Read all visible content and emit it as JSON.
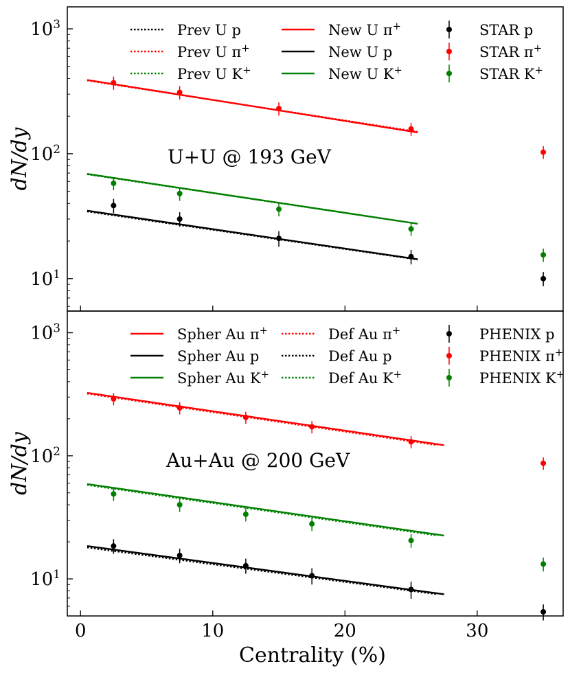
{
  "figure": {
    "xlabel": "Centrality (%)",
    "x_ticks": [
      0,
      10,
      20,
      30
    ]
  },
  "chart_data": [
    {
      "type": "line",
      "panel": "top",
      "annotation": "U+U @ 193 GeV",
      "ylabel": "dN/dy",
      "yscale": "log",
      "xlim": [
        -1,
        36.5
      ],
      "ylim": [
        5.5,
        1500
      ],
      "y_ticks": [
        10,
        100,
        1000
      ],
      "legend_placement": "top",
      "curves": [
        {
          "name": "Prev U p",
          "color": "#000000",
          "style": "dotted",
          "x": [
            0.5,
            25.5
          ],
          "y": [
            34.5,
            14.2
          ],
          "legend_col": 0,
          "legend_row": 0
        },
        {
          "name": "Prev U π⁺",
          "color": "#ff0000",
          "style": "dotted",
          "x": [
            0.5,
            25.5
          ],
          "y": [
            386,
            150
          ],
          "legend_col": 0,
          "legend_row": 1
        },
        {
          "name": "Prev U K⁺",
          "color": "#008000",
          "style": "dotted",
          "x": [
            0.5,
            25.5
          ],
          "y": [
            68.5,
            27.5
          ],
          "legend_col": 0,
          "legend_row": 2
        },
        {
          "name": "New U π⁺",
          "color": "#ff0000",
          "style": "solid",
          "x": [
            0.5,
            25.5
          ],
          "y": [
            390,
            148
          ],
          "legend_col": 1,
          "legend_row": 0
        },
        {
          "name": "New U p",
          "color": "#000000",
          "style": "solid",
          "x": [
            0.5,
            25.5
          ],
          "y": [
            35,
            14.3
          ],
          "legend_col": 1,
          "legend_row": 1
        },
        {
          "name": "New U K⁺",
          "color": "#008000",
          "style": "solid",
          "x": [
            0.5,
            25.5
          ],
          "y": [
            69,
            27.5
          ],
          "legend_col": 1,
          "legend_row": 2
        }
      ],
      "points": [
        {
          "name": "STAR p",
          "color": "#000000",
          "x": [
            2.5,
            7.5,
            15,
            25,
            35
          ],
          "y": [
            38.5,
            30,
            21,
            15,
            10
          ],
          "err": [
            5,
            4,
            3,
            2,
            1.3
          ],
          "legend_col": 2,
          "legend_row": 0
        },
        {
          "name": "STAR π⁺",
          "color": "#ff0000",
          "x": [
            2.5,
            7.5,
            15,
            25,
            35
          ],
          "y": [
            370,
            310,
            230,
            158,
            103
          ],
          "err": [
            45,
            38,
            28,
            19,
            12
          ],
          "legend_col": 2,
          "legend_row": 1
        },
        {
          "name": "STAR K⁺",
          "color": "#008000",
          "x": [
            2.5,
            7.5,
            15,
            25,
            35
          ],
          "y": [
            58,
            48,
            36,
            25,
            15.5
          ],
          "err": [
            7,
            6,
            4.5,
            3,
            1.9
          ],
          "legend_col": 2,
          "legend_row": 2
        }
      ]
    },
    {
      "type": "line",
      "panel": "bottom",
      "annotation": "Au+Au @ 200 GeV",
      "ylabel": "dN/dy",
      "yscale": "log",
      "xlim": [
        -1,
        36.5
      ],
      "ylim": [
        5,
        1500
      ],
      "y_ticks": [
        10,
        100,
        1000
      ],
      "legend_placement": "top",
      "curves": [
        {
          "name": "Spher Au π⁺",
          "color": "#ff0000",
          "style": "solid",
          "x": [
            0.5,
            27.5
          ],
          "y": [
            325,
            122
          ],
          "legend_col": 0,
          "legend_row": 0
        },
        {
          "name": "Spher Au p",
          "color": "#000000",
          "style": "solid",
          "x": [
            0.5,
            27.5
          ],
          "y": [
            18.5,
            7.5
          ],
          "legend_col": 0,
          "legend_row": 1
        },
        {
          "name": "Spher Au K⁺",
          "color": "#008000",
          "style": "solid",
          "x": [
            0.5,
            27.5
          ],
          "y": [
            59,
            22.5
          ],
          "legend_col": 0,
          "legend_row": 2
        },
        {
          "name": "Def Au π⁺",
          "color": "#ff0000",
          "style": "dotted",
          "x": [
            0.5,
            27
          ],
          "y": [
            320,
            122
          ],
          "legend_col": 1,
          "legend_row": 0
        },
        {
          "name": "Def Au p",
          "color": "#000000",
          "style": "dotted",
          "x": [
            0.5,
            27
          ],
          "y": [
            18,
            7.5
          ],
          "legend_col": 1,
          "legend_row": 1
        },
        {
          "name": "Def Au K⁺",
          "color": "#008000",
          "style": "dotted",
          "x": [
            0.5,
            27
          ],
          "y": [
            58,
            22.5
          ],
          "legend_col": 1,
          "legend_row": 2
        }
      ],
      "points": [
        {
          "name": "PHENIX p",
          "color": "#000000",
          "x": [
            2.5,
            7.5,
            12.5,
            17.5,
            25,
            35
          ],
          "y": [
            18.5,
            15.5,
            12.8,
            10.6,
            8.2,
            5.4
          ],
          "err": [
            2.5,
            2.1,
            1.8,
            1.6,
            1.3,
            0.8
          ],
          "legend_col": 2,
          "legend_row": 0
        },
        {
          "name": "PHENIX π⁺",
          "color": "#ff0000",
          "x": [
            2.5,
            7.5,
            12.5,
            17.5,
            25,
            35
          ],
          "y": [
            290,
            245,
            205,
            172,
            130,
            87
          ],
          "err": [
            33,
            28,
            23,
            20,
            15,
            10
          ],
          "legend_col": 2,
          "legend_row": 1
        },
        {
          "name": "PHENIX K⁺",
          "color": "#008000",
          "x": [
            2.5,
            7.5,
            12.5,
            17.5,
            25,
            35
          ],
          "y": [
            49,
            40,
            33.5,
            28,
            20.5,
            13.2
          ],
          "err": [
            6,
            5,
            4.2,
            3.5,
            2.6,
            1.7
          ],
          "legend_col": 2,
          "legend_row": 2
        }
      ]
    }
  ]
}
